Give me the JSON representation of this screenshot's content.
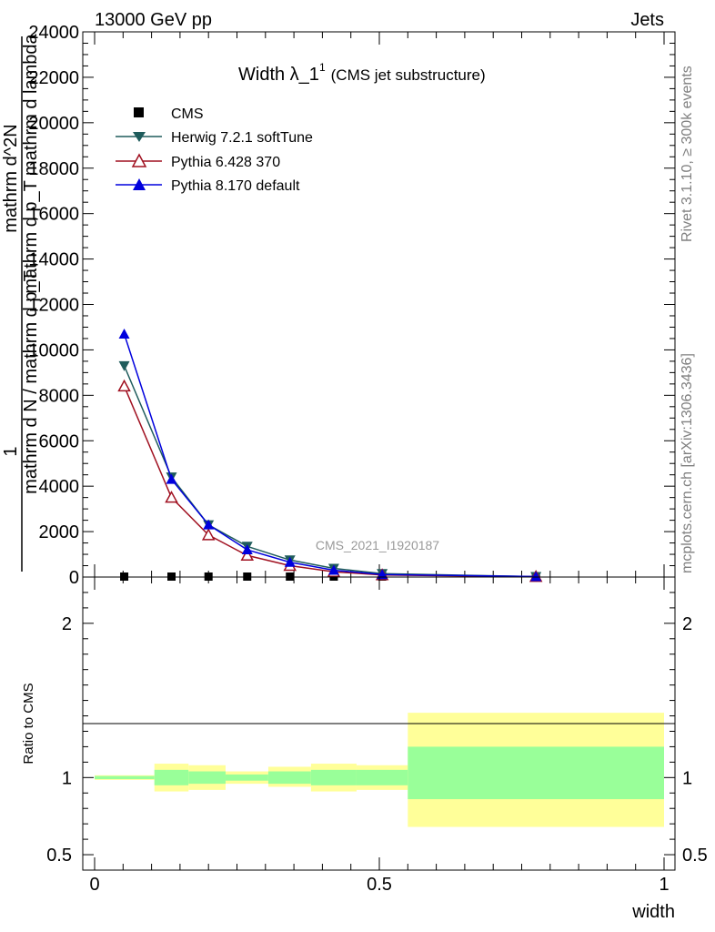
{
  "header": {
    "energy_label": "13000 GeV pp",
    "process_label": "Jets"
  },
  "side_labels": {
    "rivet": "Rivet 3.1.10, ≥ 300k events",
    "mcplots": "mcplots.cern.ch [arXiv:1306.3436]"
  },
  "watermark": "CMS_2021_I1920187",
  "colors": {
    "cms": "#000000",
    "herwig": "#1f5c5c",
    "pythia6": "#a01020",
    "pythia8": "#0000dd",
    "band_stat": "#99ff99",
    "band_total": "#ffff99"
  },
  "chart_data": [
    {
      "type": "line",
      "panel": "main",
      "title_main": "Width λ_1",
      "title_sup": "1",
      "title_sub": "(CMS jet substructure)",
      "ylabel_lines": [
        "1",
        "mathrm d N / mathrm d p_T",
        "mathrm d^2N",
        "mathrm d p_T mathrm d lambda"
      ],
      "xlabel": "width",
      "xlim": [
        0,
        1
      ],
      "ylim": [
        0,
        24000
      ],
      "yticks": [
        0,
        2000,
        4000,
        6000,
        8000,
        10000,
        12000,
        14000,
        16000,
        18000,
        20000,
        22000,
        24000
      ],
      "ytick_labels": [
        "0",
        "2000",
        "4000",
        "6000",
        "8000",
        "10000",
        "12000",
        "14000",
        "16000",
        "18000",
        "20000",
        "22000",
        "24000"
      ],
      "x": [
        0.052,
        0.135,
        0.2,
        0.268,
        0.343,
        0.42,
        0.505,
        0.775
      ],
      "series": [
        {
          "name": "CMS",
          "marker": "square",
          "values": [
            0,
            0,
            0,
            0,
            0,
            0,
            0,
            0
          ]
        },
        {
          "name": "Herwig 7.2.1 softTune",
          "marker": "triangle-down",
          "values": [
            9300,
            4400,
            2300,
            1350,
            750,
            380,
            150,
            20
          ]
        },
        {
          "name": "Pythia 6.428 370",
          "marker": "triangle-up-open",
          "values": [
            8400,
            3500,
            1850,
            950,
            500,
            230,
            90,
            15
          ]
        },
        {
          "name": "Pythia 8.170 default",
          "marker": "triangle-up",
          "values": [
            10700,
            4300,
            2300,
            1200,
            650,
            300,
            110,
            20
          ]
        }
      ]
    },
    {
      "type": "area",
      "panel": "ratio",
      "ylabel": "Ratio to CMS",
      "xlabel": "width",
      "xlim": [
        0,
        1
      ],
      "ylim": [
        0.4,
        2.3
      ],
      "yticks": [
        0.5,
        1,
        2
      ],
      "ytick_labels": [
        "0.5",
        "1",
        "2"
      ],
      "xticks": [
        0,
        0.5,
        1
      ],
      "xtick_labels": [
        "0",
        "0.5",
        "1"
      ],
      "bins": [
        {
          "lo": 0.0,
          "hi": 0.105,
          "stat_lo": 0.99,
          "stat_hi": 1.01,
          "tot_lo": 0.985,
          "tot_hi": 1.015
        },
        {
          "lo": 0.105,
          "hi": 0.165,
          "stat_lo": 0.95,
          "stat_hi": 1.05,
          "tot_lo": 0.91,
          "tot_hi": 1.09
        },
        {
          "lo": 0.165,
          "hi": 0.23,
          "stat_lo": 0.96,
          "stat_hi": 1.04,
          "tot_lo": 0.92,
          "tot_hi": 1.08
        },
        {
          "lo": 0.23,
          "hi": 0.305,
          "stat_lo": 0.98,
          "stat_hi": 1.02,
          "tot_lo": 0.96,
          "tot_hi": 1.04
        },
        {
          "lo": 0.305,
          "hi": 0.38,
          "stat_lo": 0.96,
          "stat_hi": 1.04,
          "tot_lo": 0.94,
          "tot_hi": 1.07
        },
        {
          "lo": 0.38,
          "hi": 0.46,
          "stat_lo": 0.95,
          "stat_hi": 1.05,
          "tot_lo": 0.91,
          "tot_hi": 1.09
        },
        {
          "lo": 0.46,
          "hi": 0.55,
          "stat_lo": 0.95,
          "stat_hi": 1.05,
          "tot_lo": 0.92,
          "tot_hi": 1.08
        },
        {
          "lo": 0.55,
          "hi": 1.0,
          "stat_lo": 0.86,
          "stat_hi": 1.2,
          "tot_lo": 0.68,
          "tot_hi": 1.42
        }
      ]
    }
  ]
}
